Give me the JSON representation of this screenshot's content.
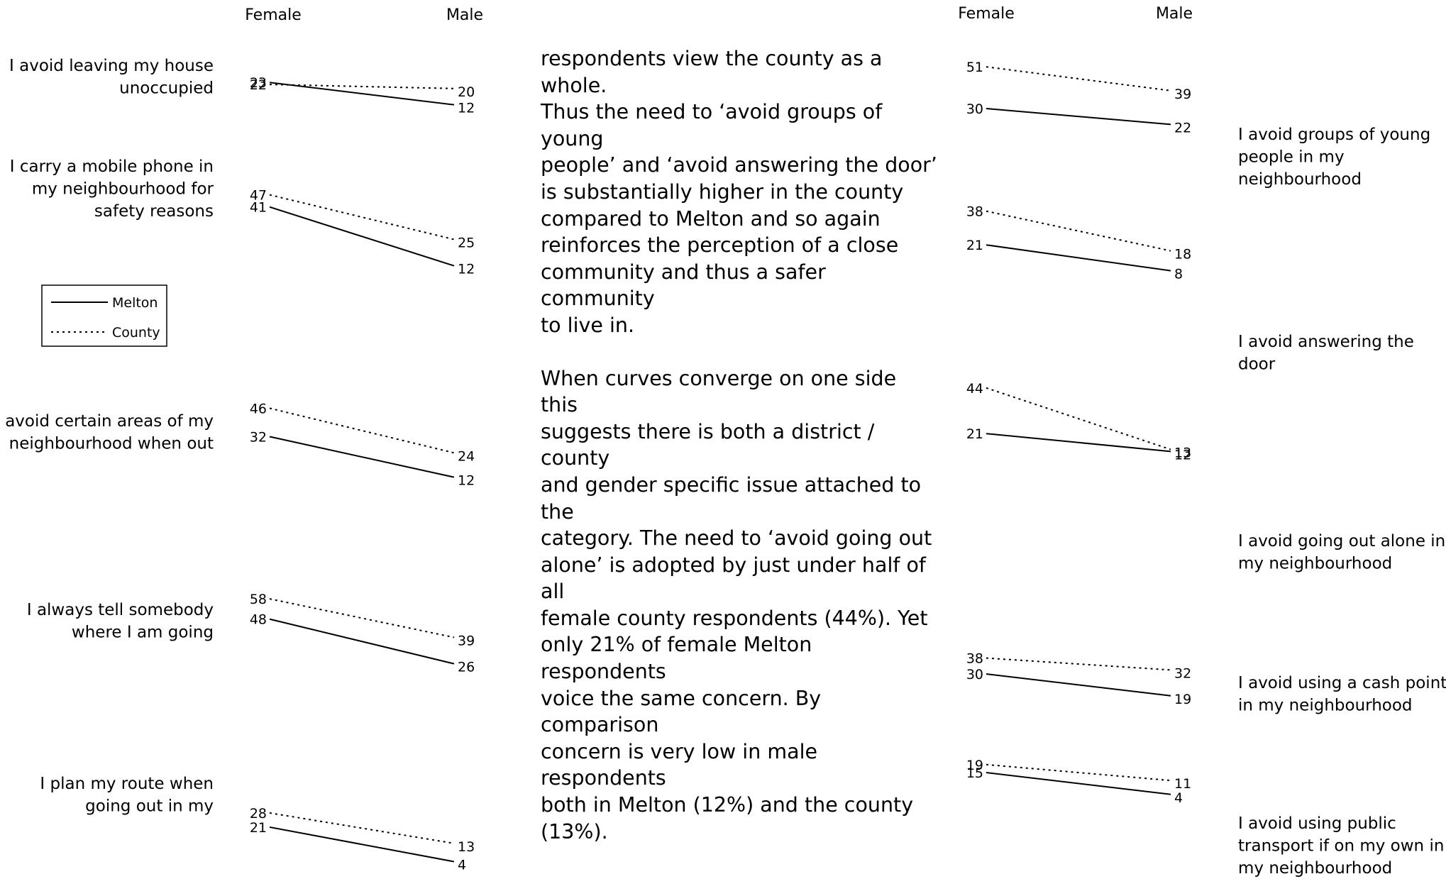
{
  "chart_data": [
    {
      "type": "line",
      "x": [
        "Female",
        "Male"
      ],
      "legend": [
        {
          "name": "Melton",
          "style": "solid"
        },
        {
          "name": "County",
          "style": "dotted"
        }
      ],
      "panels": [
        {
          "label": [
            "I avoid leaving my house",
            "unoccupied"
          ],
          "series": [
            {
              "name": "Melton",
              "values": [
                23,
                12
              ]
            },
            {
              "name": "County",
              "values": [
                22,
                20
              ]
            }
          ]
        },
        {
          "label": [
            "I carry a mobile phone in",
            "my neighbourhood for",
            "safety reasons"
          ],
          "series": [
            {
              "name": "Melton",
              "values": [
                41,
                12
              ]
            },
            {
              "name": "County",
              "values": [
                47,
                25
              ]
            }
          ]
        },
        {
          "label": [
            "I avoid certain areas of my",
            "neighbourhood when out"
          ],
          "series": [
            {
              "name": "Melton",
              "values": [
                32,
                12
              ]
            },
            {
              "name": "County",
              "values": [
                46,
                24
              ]
            }
          ]
        },
        {
          "label": [
            "I always tell somebody",
            "where I am going"
          ],
          "series": [
            {
              "name": "Melton",
              "values": [
                48,
                26
              ]
            },
            {
              "name": "County",
              "values": [
                58,
                39
              ]
            }
          ]
        },
        {
          "label": [
            "I plan my route when",
            "going out in my"
          ],
          "series": [
            {
              "name": "Melton",
              "values": [
                21,
                4
              ]
            },
            {
              "name": "County",
              "values": [
                28,
                13
              ]
            }
          ]
        }
      ]
    },
    {
      "type": "line",
      "x": [
        "Female",
        "Male"
      ],
      "panels": [
        {
          "label": [
            "I avoid groups of young",
            "people in my",
            "neighbourhood"
          ],
          "series": [
            {
              "name": "Melton",
              "values": [
                30,
                22
              ]
            },
            {
              "name": "County",
              "values": [
                51,
                39
              ]
            }
          ]
        },
        {
          "label": [
            "I avoid answering the",
            "door"
          ],
          "series": [
            {
              "name": "Melton",
              "values": [
                21,
                8
              ]
            },
            {
              "name": "County",
              "values": [
                38,
                18
              ]
            }
          ]
        },
        {
          "label": [
            "I avoid going out alone in",
            "my neighbourhood"
          ],
          "series": [
            {
              "name": "Melton",
              "values": [
                21,
                12
              ]
            },
            {
              "name": "County",
              "values": [
                44,
                13
              ]
            }
          ]
        },
        {
          "label": [
            "I avoid using a cash point",
            "in my neighbourhood"
          ],
          "series": [
            {
              "name": "Melton",
              "values": [
                30,
                19
              ]
            },
            {
              "name": "County",
              "values": [
                38,
                32
              ]
            }
          ]
        },
        {
          "label": [
            "I avoid using public",
            "transport if on my own in",
            "my neighbourhood"
          ],
          "series": [
            {
              "name": "Melton",
              "values": [
                15,
                4
              ]
            },
            {
              "name": "County",
              "values": [
                19,
                11
              ]
            }
          ]
        }
      ]
    }
  ],
  "body_text": {
    "paragraph_1": [
      "respondents view the county as a whole.",
      "Thus the need to ‘avoid groups of young",
      "people’ and ‘avoid answering the door’",
      "is substantially higher in the county",
      "compared to Melton and so again",
      "reinforces the perception of a close",
      "community and thus a safer community",
      "to live in."
    ],
    "paragraph_2": [
      "When curves converge on one side this",
      "suggests there is both a district / county",
      "and gender specific issue attached to the",
      "category. The need to ‘avoid going out",
      "alone’ is adopted by just under half of all",
      "female county respondents (44%). Yet",
      "only 21% of female Melton respondents",
      "voice the same concern. By comparison",
      "concern is very low in male respondents",
      "both in Melton (12%) and the county",
      "(13%)."
    ]
  }
}
